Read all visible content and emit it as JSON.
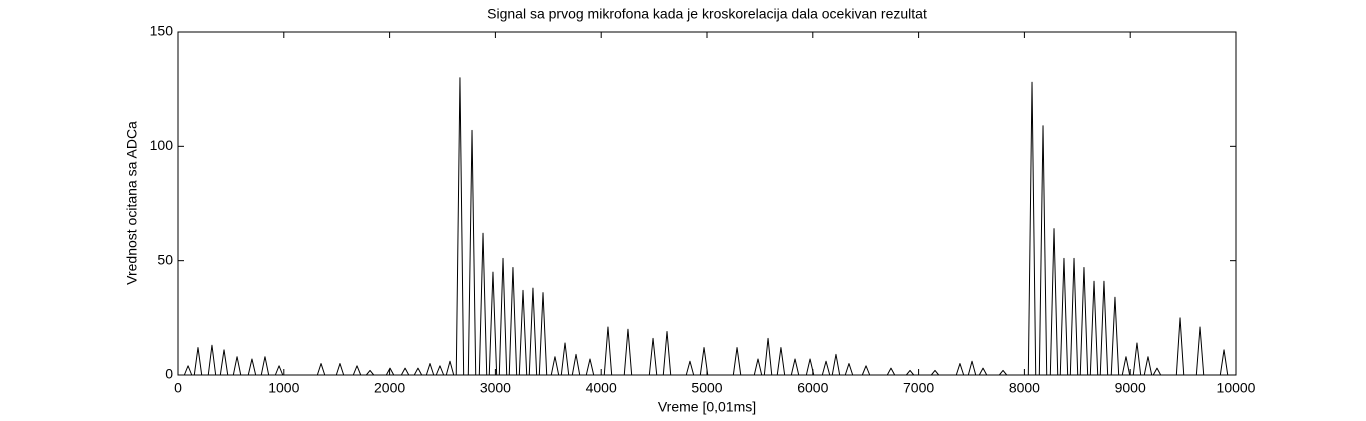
{
  "chart_data": {
    "type": "line",
    "title": "Signal sa prvog mikrofona kada je kroskorelacija dala ocekivan rezultat",
    "x_label": "Vreme [0,01ms]",
    "y_label": "Vrednost ocitana sa ADCa",
    "xlim": [
      0,
      10000
    ],
    "ylim": [
      0,
      150
    ],
    "xticks": [
      0,
      1000,
      2000,
      3000,
      4000,
      5000,
      6000,
      7000,
      8000,
      9000,
      10000
    ],
    "yticks": [
      0,
      50,
      100,
      150
    ],
    "grid": false,
    "series": [
      {
        "color": "#000000",
        "x": [
          60,
          95,
          130,
          154,
          189,
          224,
          286,
          321,
          356,
          400,
          435,
          470,
          523,
          558,
          593,
          664,
          699,
          734,
          787,
          822,
          857,
          920,
          955,
          990,
          1317,
          1352,
          1387,
          1496,
          1531,
          1566,
          1657,
          1692,
          1727,
          1780,
          1815,
          1850,
          1969,
          2004,
          2039,
          2111,
          2146,
          2181,
          2233,
          2268,
          2303,
          2347,
          2382,
          2417,
          2441,
          2476,
          2511,
          2536,
          2571,
          2606,
          2630,
          2665,
          2700,
          2744,
          2779,
          2814,
          2848,
          2883,
          2918,
          2942,
          2977,
          3012,
          3037,
          3072,
          3107,
          3131,
          3166,
          3201,
          3226,
          3261,
          3296,
          3320,
          3355,
          3390,
          3415,
          3450,
          3485,
          3528,
          3563,
          3598,
          3623,
          3658,
          3693,
          3727,
          3762,
          3797,
          3859,
          3894,
          3929,
          4029,
          4064,
          4099,
          4218,
          4253,
          4288,
          4455,
          4490,
          4525,
          4587,
          4622,
          4657,
          4804,
          4839,
          4874,
          4937,
          4972,
          5007,
          5249,
          5284,
          5319,
          5447,
          5482,
          5517,
          5542,
          5577,
          5612,
          5664,
          5699,
          5734,
          5797,
          5832,
          5867,
          5939,
          5974,
          6009,
          6090,
          6125,
          6160,
          6184,
          6219,
          6254,
          6307,
          6342,
          6377,
          6468,
          6503,
          6538,
          6704,
          6739,
          6774,
          6884,
          6919,
          6954,
          7120,
          7155,
          7190,
          7356,
          7391,
          7426,
          7470,
          7505,
          7540,
          7574,
          7609,
          7644,
          7763,
          7798,
          7833,
          8037,
          8072,
          8107,
          8141,
          8176,
          8211,
          8245,
          8280,
          8315,
          8339,
          8374,
          8409,
          8434,
          8469,
          8504,
          8528,
          8563,
          8598,
          8623,
          8658,
          8693,
          8717,
          8752,
          8787,
          8821,
          8856,
          8891,
          8925,
          8960,
          8995,
          9029,
          9064,
          9099,
          9133,
          9168,
          9203,
          9218,
          9253,
          9288,
          9436,
          9471,
          9506,
          9625,
          9660,
          9695,
          9852,
          9887,
          9922
        ],
        "values": [
          0,
          4,
          0,
          0,
          12,
          0,
          0,
          13,
          0,
          0,
          11,
          0,
          0,
          8,
          0,
          0,
          7,
          0,
          0,
          8,
          0,
          0,
          4,
          0,
          0,
          5,
          0,
          0,
          5,
          0,
          0,
          4,
          0,
          0,
          2,
          0,
          0,
          3,
          0,
          0,
          3,
          0,
          0,
          3,
          0,
          0,
          5,
          0,
          0,
          4,
          0,
          0,
          6,
          0,
          0,
          130,
          0,
          0,
          107,
          0,
          0,
          62,
          0,
          0,
          45,
          0,
          0,
          51,
          0,
          0,
          47,
          0,
          0,
          37,
          0,
          0,
          38,
          0,
          0,
          36,
          0,
          0,
          8,
          0,
          0,
          14,
          0,
          0,
          9,
          0,
          0,
          7,
          0,
          0,
          21,
          0,
          0,
          20,
          0,
          0,
          16,
          0,
          0,
          19,
          0,
          0,
          6,
          0,
          0,
          12,
          0,
          0,
          12,
          0,
          0,
          7,
          0,
          0,
          16,
          0,
          0,
          12,
          0,
          0,
          7,
          0,
          0,
          7,
          0,
          0,
          6,
          0,
          0,
          9,
          0,
          0,
          5,
          0,
          0,
          4,
          0,
          0,
          3,
          0,
          0,
          2,
          0,
          0,
          2,
          0,
          0,
          5,
          0,
          0,
          6,
          0,
          0,
          3,
          0,
          0,
          2,
          0,
          0,
          128,
          0,
          0,
          109,
          0,
          0,
          64,
          0,
          0,
          51,
          0,
          0,
          51,
          0,
          0,
          47,
          0,
          0,
          41,
          0,
          0,
          41,
          0,
          0,
          34,
          0,
          0,
          8,
          0,
          0,
          14,
          0,
          0,
          8,
          0,
          0,
          3,
          0,
          0,
          25,
          0,
          0,
          21,
          0,
          0,
          11,
          0
        ]
      }
    ]
  }
}
